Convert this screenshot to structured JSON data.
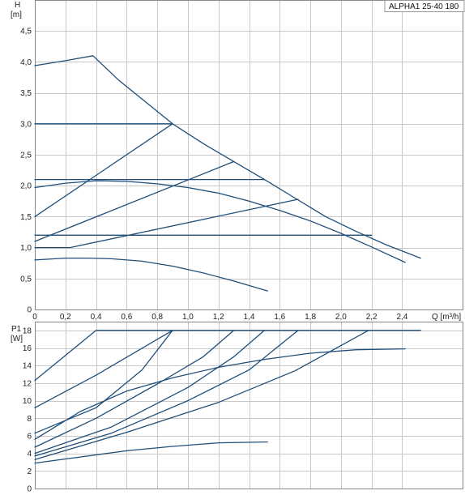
{
  "chart_data": [
    {
      "type": "line",
      "title": "ALPHA1 25-40 180",
      "ylabel_symbol": "H",
      "ylabel_unit": "[m]",
      "xlabel": "Q [m³/h]",
      "xlim": [
        0,
        2.8
      ],
      "ylim": [
        0,
        5.0
      ],
      "x_ticks": [
        "0",
        "0,2",
        "0,4",
        "0,6",
        "0,8",
        "1,0",
        "1,2",
        "1,4",
        "1,6",
        "1,8",
        "2,0",
        "2,2",
        "2,4"
      ],
      "x_tick_values": [
        0,
        0.2,
        0.4,
        0.6,
        0.8,
        1.0,
        1.2,
        1.4,
        1.6,
        1.8,
        2.0,
        2.2,
        2.4
      ],
      "y_ticks": [
        "0",
        "0,5",
        "1,0",
        "1,5",
        "2,0",
        "2,5",
        "3,0",
        "3,5",
        "4,0",
        "4,5"
      ],
      "y_tick_values": [
        0,
        0.5,
        1.0,
        1.5,
        2.0,
        2.5,
        3.0,
        3.5,
        4.0,
        4.5
      ],
      "grid": true,
      "series": [
        {
          "x": [
            0,
            0.2,
            0.38,
            0.55,
            0.7,
            0.9,
            1.1,
            1.3,
            1.5,
            1.7,
            1.9,
            2.1,
            2.3,
            2.52
          ],
          "y": [
            3.94,
            4.02,
            4.1,
            3.7,
            3.4,
            3.0,
            2.68,
            2.39,
            2.1,
            1.8,
            1.5,
            1.26,
            1.04,
            0.83
          ]
        },
        {
          "x": [
            0,
            0.9
          ],
          "y": [
            3.0,
            3.0
          ]
        },
        {
          "x": [
            0,
            0.9
          ],
          "y": [
            1.5,
            3.0
          ]
        },
        {
          "x": [
            0,
            1.3
          ],
          "y": [
            1.1,
            2.39
          ]
        },
        {
          "x": [
            0,
            0.23,
            1.72
          ],
          "y": [
            1.0,
            1.0,
            1.78
          ]
        },
        {
          "x": [
            0,
            1.5
          ],
          "y": [
            2.1,
            2.1
          ]
        },
        {
          "x": [
            0,
            2.2
          ],
          "y": [
            1.2,
            1.2
          ]
        },
        {
          "x": [
            0,
            0.2,
            0.4,
            0.6,
            0.8,
            1.0,
            1.2,
            1.4,
            1.6,
            1.8,
            2.0,
            2.2,
            2.42
          ],
          "y": [
            1.97,
            2.04,
            2.08,
            2.07,
            2.03,
            1.97,
            1.88,
            1.75,
            1.6,
            1.43,
            1.23,
            1.01,
            0.76
          ]
        },
        {
          "x": [
            0,
            0.2,
            0.35,
            0.5,
            0.7,
            0.9,
            1.1,
            1.3,
            1.52
          ],
          "y": [
            0.8,
            0.83,
            0.83,
            0.82,
            0.78,
            0.7,
            0.59,
            0.46,
            0.3
          ]
        }
      ]
    },
    {
      "type": "line",
      "ylabel_symbol": "P1",
      "ylabel_unit": "[W]",
      "xlim": [
        0,
        2.8
      ],
      "ylim": [
        0,
        19.0
      ],
      "x_tick_values": [
        0,
        0.2,
        0.4,
        0.6,
        0.8,
        1.0,
        1.2,
        1.4,
        1.6,
        1.8,
        2.0,
        2.2,
        2.4
      ],
      "y_ticks": [
        "0",
        "2",
        "4",
        "6",
        "8",
        "10",
        "12",
        "14",
        "16",
        "18"
      ],
      "y_tick_values": [
        0,
        2,
        4,
        6,
        8,
        10,
        12,
        14,
        16,
        18
      ],
      "grid": true,
      "series": [
        {
          "x": [
            0,
            0.4,
            2.52
          ],
          "y": [
            12.3,
            18.0,
            18.0
          ]
        },
        {
          "x": [
            0,
            0.4,
            0.9
          ],
          "y": [
            9.2,
            12.9,
            18.0
          ]
        },
        {
          "x": [
            0,
            0.4,
            0.7,
            0.9
          ],
          "y": [
            6.3,
            9.2,
            13.5,
            18.0
          ]
        },
        {
          "x": [
            0,
            0.4,
            0.8,
            1.1,
            1.3
          ],
          "y": [
            4.7,
            8.0,
            11.9,
            15.0,
            18.0
          ]
        },
        {
          "x": [
            0,
            0.5,
            1.0,
            1.3,
            1.5
          ],
          "y": [
            4.0,
            7.0,
            11.5,
            15.0,
            18.0
          ]
        },
        {
          "x": [
            0,
            0.5,
            1.0,
            1.4,
            1.72
          ],
          "y": [
            3.7,
            6.3,
            10.0,
            13.5,
            18.0
          ]
        },
        {
          "x": [
            0,
            0.6,
            1.2,
            1.7,
            2.18
          ],
          "y": [
            3.3,
            6.4,
            9.8,
            13.4,
            18.0
          ]
        },
        {
          "x": [
            0,
            0.3,
            0.6,
            0.9,
            1.2,
            1.5,
            1.8,
            2.1,
            2.42
          ],
          "y": [
            5.6,
            8.8,
            11.1,
            12.6,
            13.8,
            14.7,
            15.4,
            15.8,
            15.9
          ]
        },
        {
          "x": [
            0,
            0.3,
            0.6,
            0.9,
            1.2,
            1.52
          ],
          "y": [
            2.9,
            3.6,
            4.3,
            4.8,
            5.2,
            5.3
          ]
        }
      ]
    }
  ]
}
